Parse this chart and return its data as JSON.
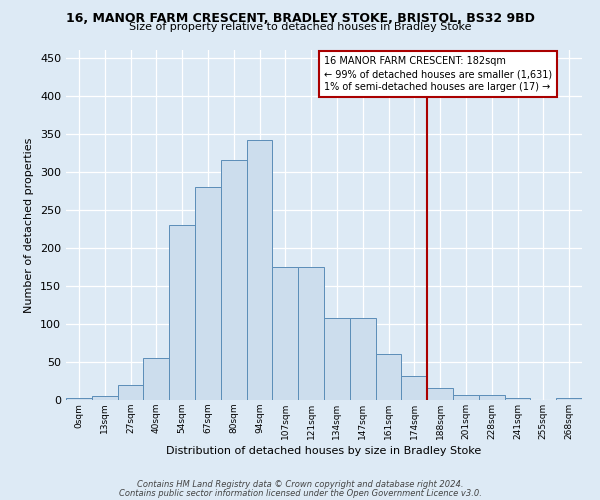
{
  "title": "16, MANOR FARM CRESCENT, BRADLEY STOKE, BRISTOL, BS32 9BD",
  "subtitle": "Size of property relative to detached houses in Bradley Stoke",
  "xlabel": "Distribution of detached houses by size in Bradley Stoke",
  "ylabel": "Number of detached properties",
  "bar_labels": [
    "0sqm",
    "13sqm",
    "27sqm",
    "40sqm",
    "54sqm",
    "67sqm",
    "80sqm",
    "94sqm",
    "107sqm",
    "121sqm",
    "134sqm",
    "147sqm",
    "161sqm",
    "174sqm",
    "188sqm",
    "201sqm",
    "228sqm",
    "241sqm",
    "255sqm",
    "268sqm"
  ],
  "bar_values": [
    2,
    5,
    20,
    55,
    230,
    280,
    315,
    342,
    175,
    175,
    108,
    108,
    60,
    32,
    16,
    6,
    6,
    2,
    0,
    2
  ],
  "red_line_index": 14.0,
  "annotation_title": "16 MANOR FARM CRESCENT: 182sqm",
  "annotation_line1": "← 99% of detached houses are smaller (1,631)",
  "annotation_line2": "1% of semi-detached houses are larger (17) →",
  "ylim": [
    0,
    460
  ],
  "yticks": [
    0,
    50,
    100,
    150,
    200,
    250,
    300,
    350,
    400,
    450
  ],
  "bar_color": "#ccdded",
  "bar_edge_color": "#5b8db8",
  "red_line_color": "#aa0000",
  "footer_line1": "Contains HM Land Registry data © Crown copyright and database right 2024.",
  "footer_line2": "Contains public sector information licensed under the Open Government Licence v3.0.",
  "background_color": "#ddeaf5",
  "fig_bg_color": "#ddeaf5"
}
